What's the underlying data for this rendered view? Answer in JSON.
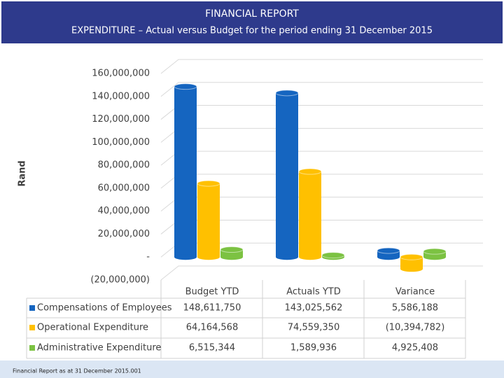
{
  "chart_data": {
    "type": "bar",
    "title": "FINANCIAL REPORT",
    "subtitle": "EXPENDITURE – Actual versus Budget for the period ending 31 December 2015",
    "y_label": "Rand",
    "categories": [
      "Budget YTD",
      "Actuals YTD",
      "Variance"
    ],
    "series": [
      {
        "name": "Compensations of Employees",
        "color": "#1565c0",
        "values": [
          148611750,
          143025562,
          5586188
        ],
        "value_labels": [
          "148,611,750",
          "143,025,562",
          "5,586,188"
        ]
      },
      {
        "name": "Operational Expenditure",
        "color": "#ffc000",
        "values": [
          64164568,
          74559350,
          -10394782
        ],
        "value_labels": [
          "64,164,568",
          "74,559,350",
          "(10,394,782)"
        ]
      },
      {
        "name": "Administrative Expenditure",
        "color": "#7cc242",
        "values": [
          6515344,
          1589936,
          4925408
        ],
        "value_labels": [
          "6,515,344",
          "1,589,936",
          "4,925,408"
        ]
      }
    ],
    "ylim": [
      -20000000,
      160000000
    ],
    "yticks": [
      {
        "value": -20000000,
        "label": "(20,000,000)"
      },
      {
        "value": 0,
        "label": "-"
      },
      {
        "value": 20000000,
        "label": "20,000,000"
      },
      {
        "value": 40000000,
        "label": "40,000,000"
      },
      {
        "value": 60000000,
        "label": "60,000,000"
      },
      {
        "value": 80000000,
        "label": "80,000,000"
      },
      {
        "value": 100000000,
        "label": "100,000,000"
      },
      {
        "value": 120000000,
        "label": "120,000,000"
      },
      {
        "value": 140000000,
        "label": "140,000,000"
      },
      {
        "value": 160000000,
        "label": "160,000,000"
      }
    ],
    "grid": true,
    "footer": "Financial Report as at 31 December 2015.001"
  }
}
